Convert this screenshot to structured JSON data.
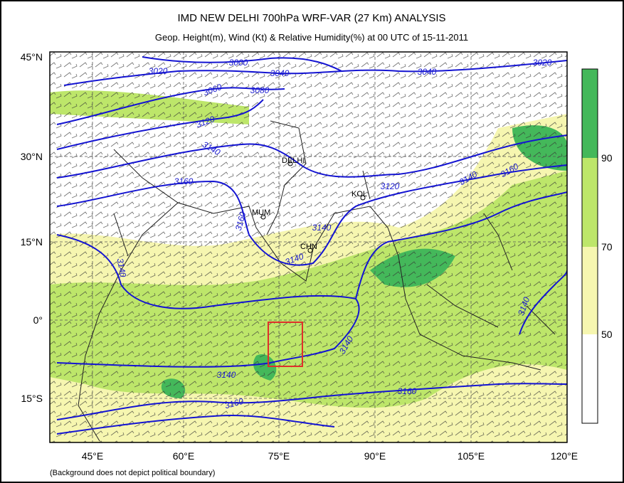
{
  "header": {
    "title": "IMD NEW DELHI 700hPa WRF-VAR (27 Km) ANALYSIS",
    "subtitle": "Geop. Height(m), Wind (Kt) & Relative Humidity(%)  at 00 UTC of 15-11-2011"
  },
  "map": {
    "lat_labels": [
      "45°N",
      "30°N",
      "15°N",
      "0°",
      "15°S"
    ],
    "lon_labels": [
      "45°E",
      "60°E",
      "75°E",
      "90°E",
      "105°E",
      "120°E"
    ],
    "contour_labels": [
      "3000",
      "3020",
      "3040",
      "3060",
      "3080",
      "3120",
      "3140",
      "3160",
      "3160",
      "3140",
      "3140",
      "3120",
      "3140",
      "3160",
      "3040",
      "3020",
      "3140",
      "3140",
      "3140",
      "3160",
      "3160",
      "3140"
    ],
    "stations": [
      "DELHI",
      "KOL",
      "MUM",
      "CHN"
    ]
  },
  "colorbar": {
    "labels": [
      90,
      70,
      50
    ]
  },
  "footnote": "(Background does not depict political boundary)"
}
